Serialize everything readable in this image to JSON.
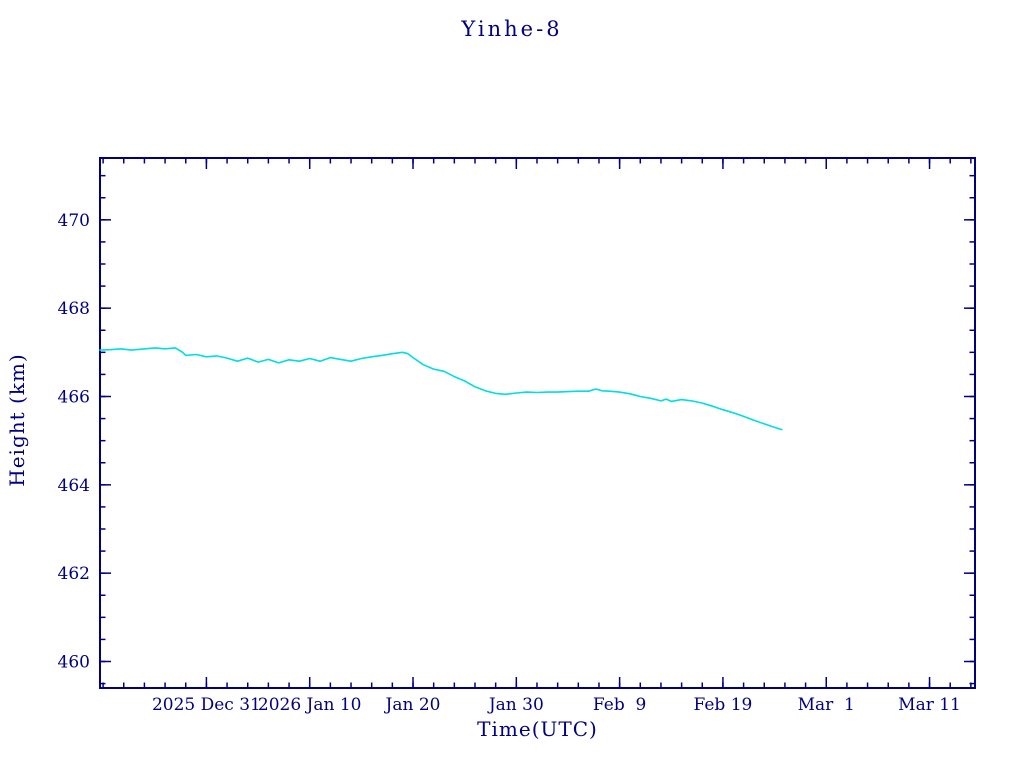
{
  "page": {
    "background": "#ffffff"
  },
  "chart_data": {
    "type": "line",
    "title": "Yinhe-8",
    "xlabel": "Time(UTC)",
    "ylabel": "Height (km)",
    "axis_color": "#000080",
    "line_color": "#00dede",
    "grid": false,
    "legend": "none",
    "ylim": [
      459.4,
      471.4
    ],
    "yticks": [
      460,
      462,
      464,
      466,
      468,
      470
    ],
    "y_minor_step": 0.5,
    "xlim_days": [
      0,
      84.7
    ],
    "x_minor_step": 2,
    "x_minor_start": 0.3,
    "xticks": [
      {
        "day": 10.3,
        "label": "2025 Dec 31"
      },
      {
        "day": 20.3,
        "label": "2026 Jan 10"
      },
      {
        "day": 30.3,
        "label": "Jan 20"
      },
      {
        "day": 40.3,
        "label": "Jan 30"
      },
      {
        "day": 50.3,
        "label": "Feb  9"
      },
      {
        "day": 60.3,
        "label": "Feb 19"
      },
      {
        "day": 70.3,
        "label": "Mar  1"
      },
      {
        "day": 80.3,
        "label": "Mar 11"
      }
    ],
    "series": [
      {
        "name": "Yinhe-8 height (km)",
        "points": [
          [
            0,
            467.05
          ],
          [
            1,
            467.06
          ],
          [
            2,
            467.08
          ],
          [
            3,
            467.05
          ],
          [
            4,
            467.07
          ],
          [
            5.3,
            467.1
          ],
          [
            6.3,
            467.08
          ],
          [
            7.3,
            467.1
          ],
          [
            8.0,
            467.0
          ],
          [
            8.3,
            466.93
          ],
          [
            9.3,
            466.95
          ],
          [
            10.3,
            466.9
          ],
          [
            11.3,
            466.92
          ],
          [
            12.3,
            466.87
          ],
          [
            13.3,
            466.8
          ],
          [
            14.3,
            466.87
          ],
          [
            15.3,
            466.78
          ],
          [
            16.3,
            466.84
          ],
          [
            17.3,
            466.76
          ],
          [
            18.3,
            466.83
          ],
          [
            19.3,
            466.8
          ],
          [
            20.3,
            466.86
          ],
          [
            21.3,
            466.8
          ],
          [
            22.3,
            466.88
          ],
          [
            23.3,
            466.84
          ],
          [
            24.3,
            466.8
          ],
          [
            25.3,
            466.86
          ],
          [
            26.3,
            466.9
          ],
          [
            27.3,
            466.93
          ],
          [
            28.3,
            466.97
          ],
          [
            29.3,
            467.0
          ],
          [
            29.8,
            466.97
          ],
          [
            30.3,
            466.88
          ],
          [
            31.3,
            466.72
          ],
          [
            32.3,
            466.62
          ],
          [
            33.3,
            466.57
          ],
          [
            34.3,
            466.45
          ],
          [
            35.3,
            466.35
          ],
          [
            36.3,
            466.22
          ],
          [
            37.3,
            466.13
          ],
          [
            38.3,
            466.07
          ],
          [
            39.3,
            466.05
          ],
          [
            40.3,
            466.08
          ],
          [
            41.3,
            466.1
          ],
          [
            42.3,
            466.09
          ],
          [
            43.3,
            466.1
          ],
          [
            44.3,
            466.1
          ],
          [
            45.3,
            466.11
          ],
          [
            46.3,
            466.12
          ],
          [
            47.3,
            466.12
          ],
          [
            48.0,
            466.17
          ],
          [
            48.6,
            466.13
          ],
          [
            49.3,
            466.12
          ],
          [
            50.3,
            466.1
          ],
          [
            51.3,
            466.06
          ],
          [
            52.3,
            466.0
          ],
          [
            53.3,
            465.96
          ],
          [
            54.3,
            465.9
          ],
          [
            54.8,
            465.94
          ],
          [
            55.3,
            465.89
          ],
          [
            56.3,
            465.93
          ],
          [
            57.3,
            465.9
          ],
          [
            58.3,
            465.85
          ],
          [
            59.3,
            465.78
          ],
          [
            60.3,
            465.7
          ],
          [
            61.3,
            465.63
          ],
          [
            62.3,
            465.55
          ],
          [
            63.3,
            465.46
          ],
          [
            64.3,
            465.38
          ],
          [
            65.3,
            465.3
          ],
          [
            66.0,
            465.25
          ]
        ]
      }
    ]
  }
}
